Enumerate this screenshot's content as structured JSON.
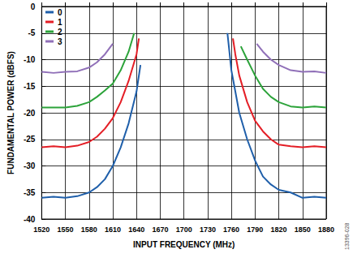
{
  "chart_data": {
    "type": "line",
    "x_label": "INPUT FREQUENCY (MHz)",
    "y_label": "FUNDAMENTAL POWER (dBFS)",
    "annotation": "13396-028",
    "xlim": [
      1520,
      1880
    ],
    "xticks": [
      1520,
      1550,
      1580,
      1610,
      1640,
      1670,
      1700,
      1730,
      1760,
      1790,
      1820,
      1850,
      1880
    ],
    "ylim": [
      -40,
      0
    ],
    "yticks": [
      -40,
      -35,
      -30,
      -25,
      -20,
      -15,
      -10,
      -5,
      0
    ],
    "grid": true,
    "legend": "top-left",
    "series": [
      {
        "name": "0",
        "color": "#1f5faa",
        "x": [
          1520,
          1535,
          1550,
          1565,
          1580,
          1590,
          1600,
          1610,
          1620,
          1630,
          1640,
          1645,
          null,
          1755,
          1760,
          1765,
          1770,
          1780,
          1790,
          1800,
          1810,
          1820,
          1835,
          1850,
          1865,
          1880
        ],
        "values": [
          -36,
          -35.8,
          -36,
          -35.7,
          -35,
          -34,
          -32.5,
          -30,
          -26.5,
          -22,
          -16,
          -11,
          null,
          -5,
          -12,
          -16,
          -20,
          -25,
          -29,
          -32,
          -33.5,
          -34.5,
          -35,
          -36,
          -35.8,
          -36
        ]
      },
      {
        "name": "1",
        "color": "#e41e26",
        "x": [
          1520,
          1535,
          1550,
          1565,
          1580,
          1590,
          1600,
          1610,
          1620,
          1630,
          1640,
          1643,
          null,
          1762,
          1765,
          1770,
          1780,
          1790,
          1800,
          1810,
          1820,
          1835,
          1850,
          1865,
          1880
        ],
        "values": [
          -26.5,
          -26.3,
          -26.5,
          -26.2,
          -25.5,
          -24.5,
          -23,
          -21,
          -18,
          -14,
          -9,
          -6,
          null,
          -6,
          -9,
          -13,
          -18,
          -21.5,
          -23.5,
          -25,
          -26,
          -26.3,
          -26.5,
          -26.3,
          -26.5
        ]
      },
      {
        "name": "2",
        "color": "#2ca33a",
        "x": [
          1520,
          1535,
          1550,
          1565,
          1580,
          1590,
          1600,
          1610,
          1620,
          1630,
          1637,
          null,
          1772,
          1780,
          1790,
          1800,
          1810,
          1820,
          1835,
          1850,
          1865,
          1880
        ],
        "values": [
          -19,
          -19,
          -19,
          -18.7,
          -18,
          -17,
          -15.8,
          -14.5,
          -12,
          -8.5,
          -5,
          null,
          -7.5,
          -10,
          -13,
          -15.5,
          -17,
          -18,
          -18.8,
          -19,
          -18.8,
          -19
        ]
      },
      {
        "name": "3",
        "color": "#9070b8",
        "x": [
          1520,
          1535,
          1550,
          1565,
          1580,
          1590,
          1600,
          1610,
          null,
          1792,
          1800,
          1810,
          1820,
          1835,
          1850,
          1865,
          1880
        ],
        "values": [
          -12.3,
          -12.5,
          -12.3,
          -12.2,
          -11.5,
          -10.5,
          -9,
          -7,
          null,
          -7,
          -8.5,
          -10,
          -11,
          -12,
          -12.3,
          -12.2,
          -12.5
        ]
      }
    ]
  }
}
